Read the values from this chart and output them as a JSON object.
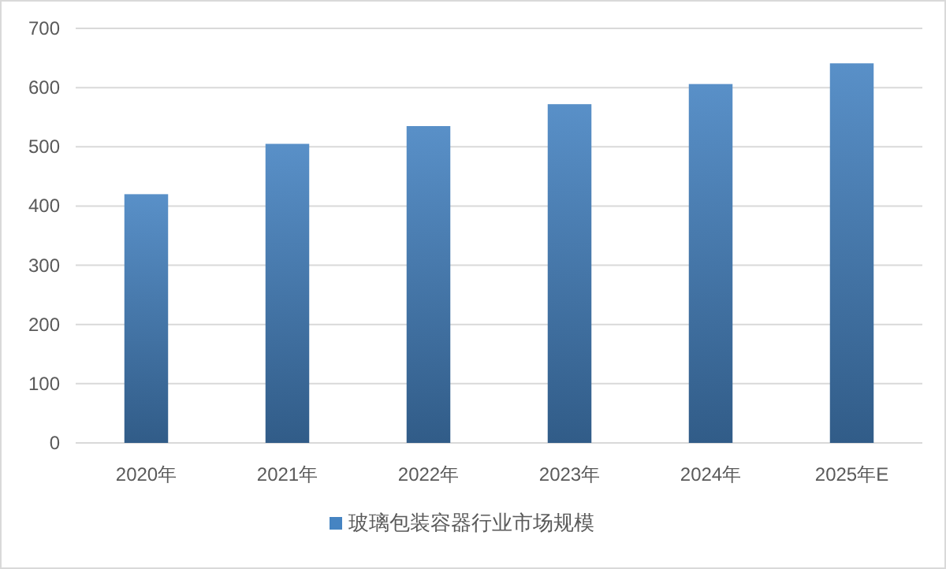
{
  "chart_data": {
    "type": "bar",
    "categories": [
      "2020年",
      "2021年",
      "2022年",
      "2023年",
      "2024年",
      "2025年E"
    ],
    "series": [
      {
        "name": "玻璃包装容器行业市场规模",
        "color": "#4684c2",
        "values": [
          420,
          505,
          535,
          572,
          606,
          641
        ]
      }
    ],
    "ylim": [
      0,
      700
    ],
    "yticks": [
      0,
      100,
      200,
      300,
      400,
      500,
      600,
      700
    ],
    "grid": "y",
    "legend": "bottom"
  }
}
